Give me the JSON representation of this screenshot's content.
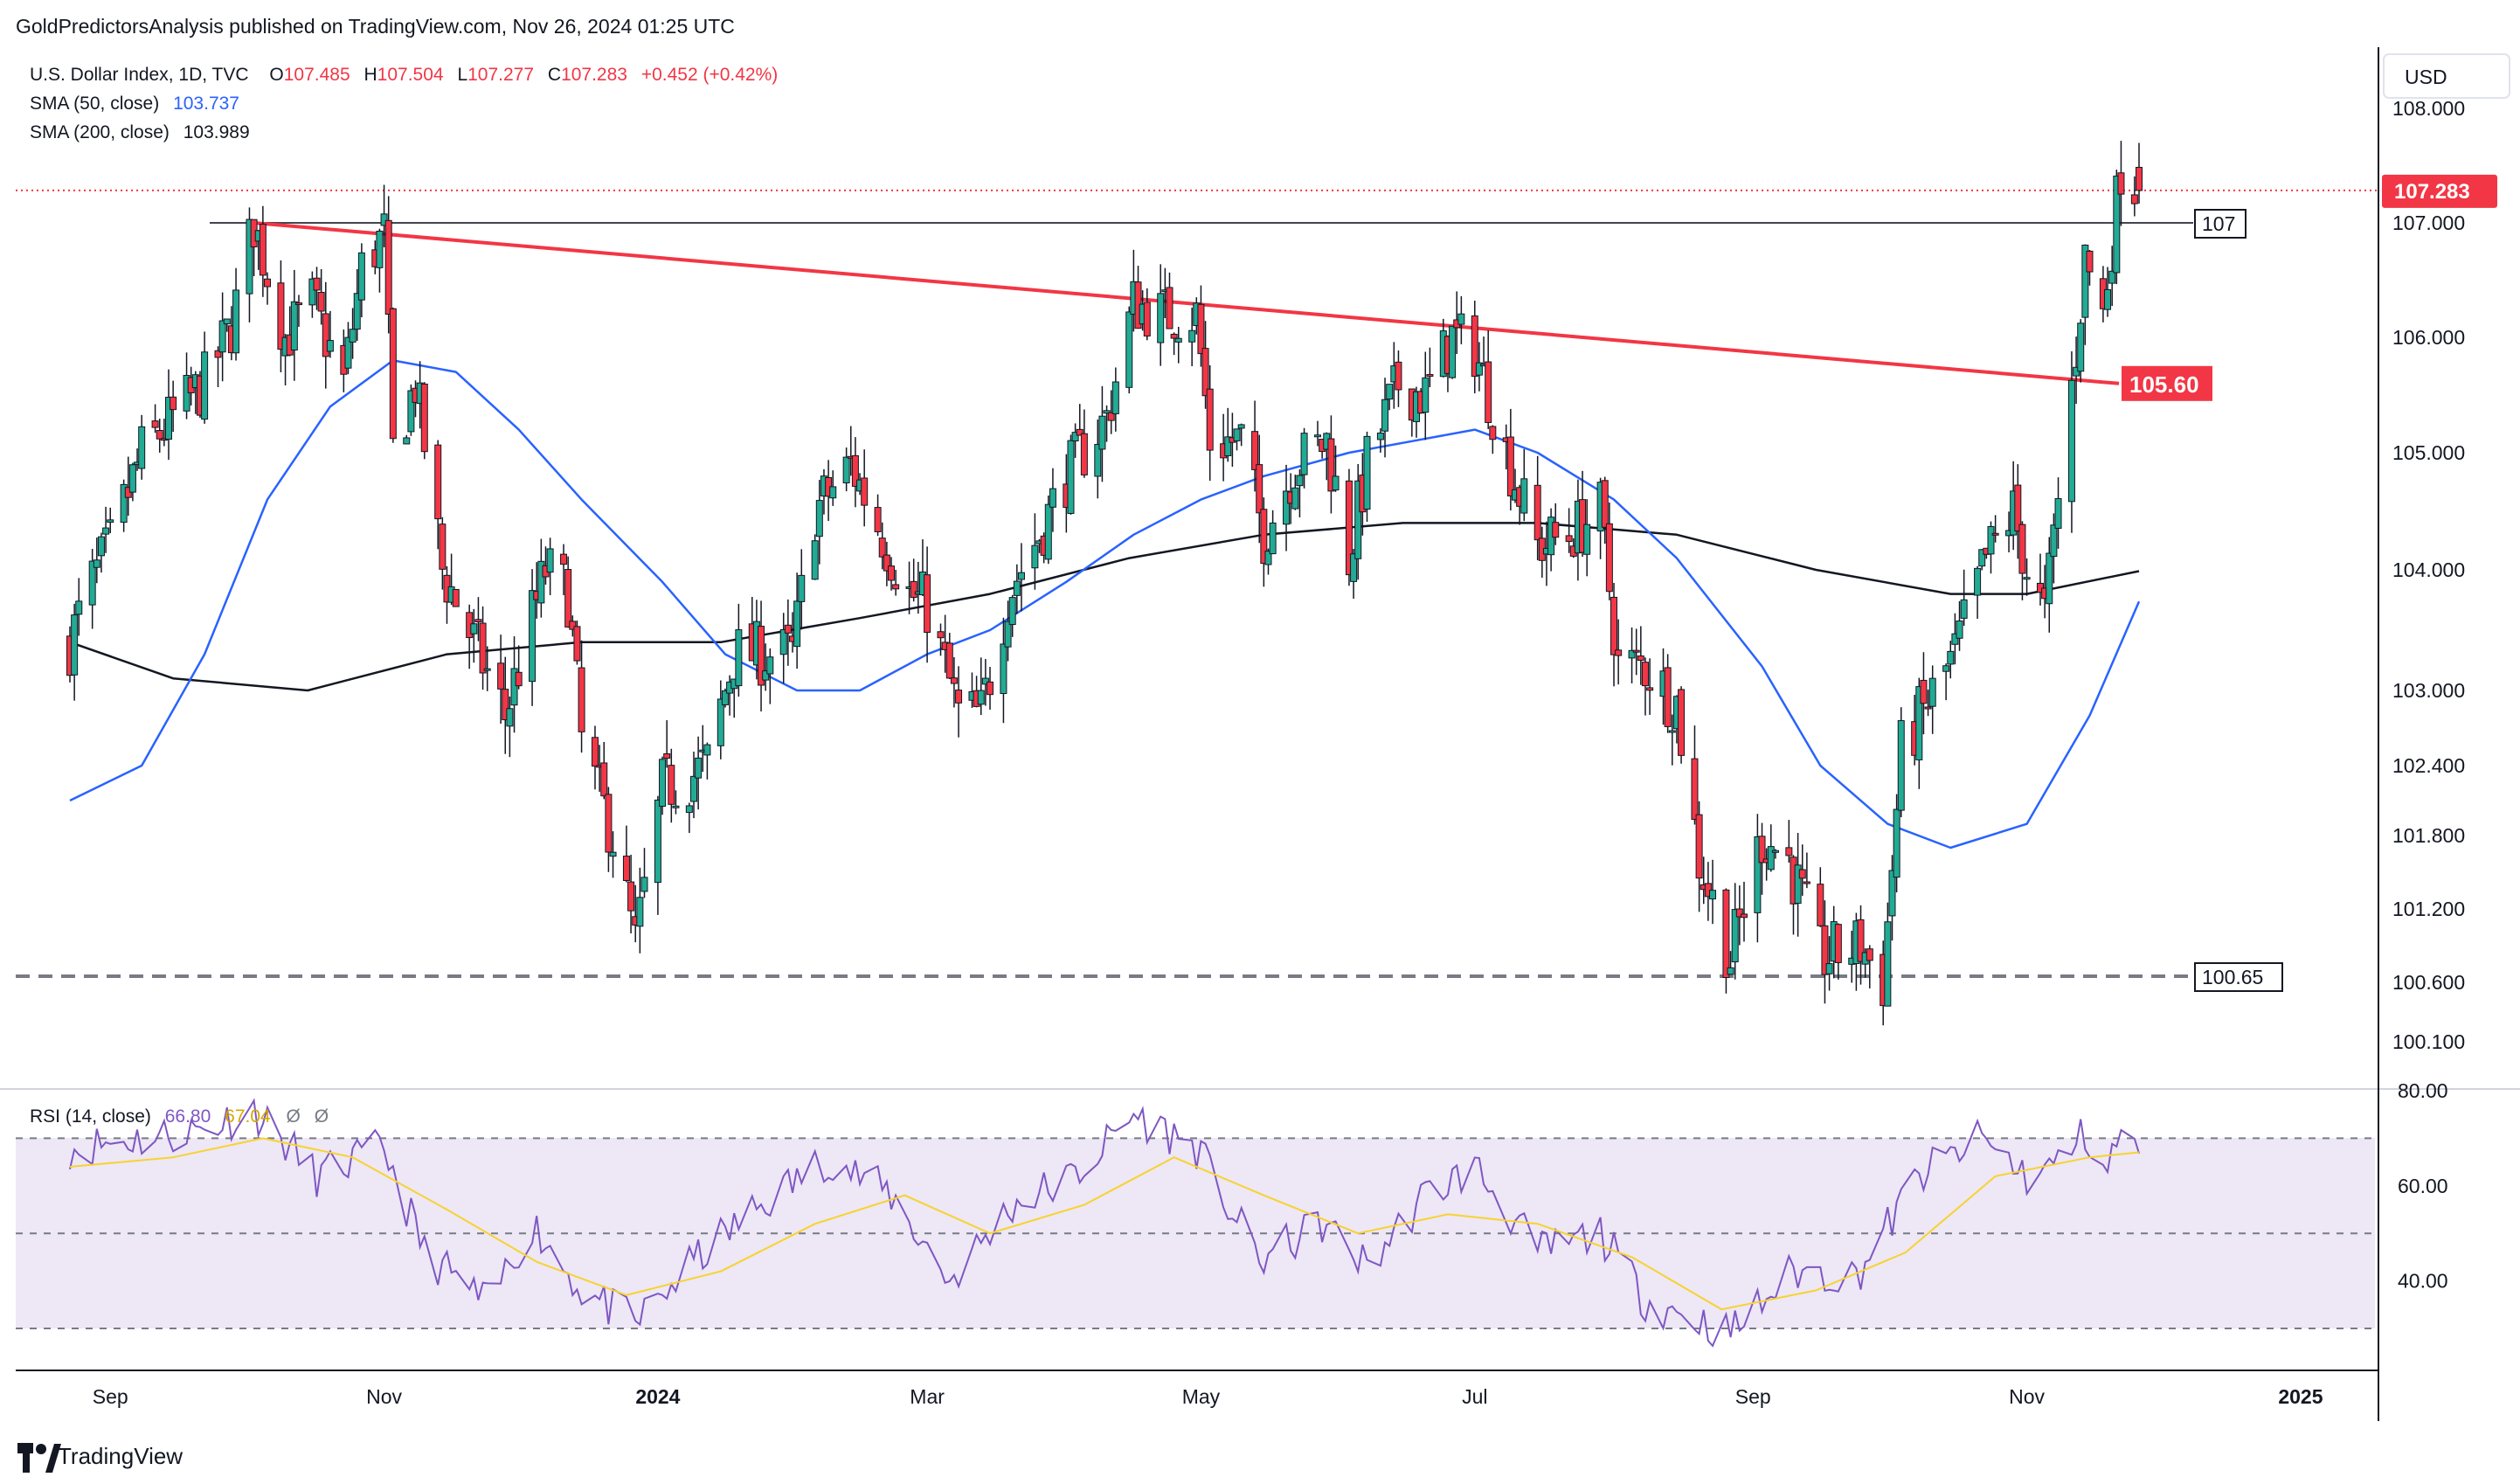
{
  "header": {
    "published": "GoldPredictorsAnalysis published on TradingView.com, Nov 26, 2024 01:25 UTC"
  },
  "legend": {
    "symbol": "U.S. Dollar Index, 1D, TVC",
    "open_label": "O",
    "open": "107.485",
    "high_label": "H",
    "high": "107.504",
    "low_label": "L",
    "low": "107.277",
    "close_label": "C",
    "close": "107.283",
    "change": "+0.452 (+0.42%)",
    "sma50_label": "SMA (50, close)",
    "sma50_value": "103.737",
    "sma200_label": "SMA (200, close)",
    "sma200_value": "103.989",
    "rsi_label": "RSI (14, close)",
    "rsi_value": "66.80",
    "rsi_ma_value": "67.04",
    "rsi_extra1": "Ø",
    "rsi_extra2": "Ø"
  },
  "footer": {
    "brand": "TradingView"
  },
  "colors": {
    "up": "#22ab94",
    "down": "#f23645",
    "sma50": "#2962ff",
    "sma200": "#131722",
    "resistance": "#f23645",
    "rsi_line": "#7e57c2",
    "rsi_ma": "#f7d32e",
    "rsi_band": "#ede7f6",
    "price_tag": "#f23645"
  },
  "chart_data": {
    "type": "candlestick",
    "currency": "USD",
    "price_axis_ticks": [
      "108.000",
      "107.000",
      "106.000",
      "105.000",
      "104.000",
      "103.000",
      "102.400",
      "101.800",
      "101.200",
      "100.600",
      "100.100"
    ],
    "rsi_axis_ticks": [
      "80.00",
      "60.00",
      "40.00"
    ],
    "time_axis_ticks": [
      "Sep",
      "Nov",
      "2024",
      "Mar",
      "May",
      "Jul",
      "Sep",
      "Nov",
      "2025"
    ],
    "last_price_label": "107.283",
    "horizontal_lines": [
      {
        "label": "107",
        "value": 107.0,
        "style": "solid"
      },
      {
        "label": "100.65",
        "value": 100.65,
        "style": "dashed"
      }
    ],
    "trendline": {
      "label": "105.60",
      "start": {
        "date": "2023-10-03",
        "value": 107.0
      },
      "end": {
        "date": "2024-11-26",
        "value": 105.6
      }
    },
    "sma50_end": 103.737,
    "sma200_end": 103.989,
    "rsi_levels": [
      70,
      50,
      30
    ],
    "rsi_end": 66.8,
    "rsi_ma_end": 67.04,
    "price_path": [
      [
        "2023-08-23",
        103.4
      ],
      [
        "2023-08-28",
        103.9
      ],
      [
        "2023-09-01",
        104.2
      ],
      [
        "2023-09-08",
        105.0
      ],
      [
        "2023-09-15",
        105.3
      ],
      [
        "2023-09-22",
        105.6
      ],
      [
        "2023-09-28",
        106.1
      ],
      [
        "2023-10-03",
        107.0
      ],
      [
        "2023-10-10",
        106.0
      ],
      [
        "2023-10-16",
        106.3
      ],
      [
        "2023-10-23",
        105.6
      ],
      [
        "2023-10-27",
        106.6
      ],
      [
        "2023-11-01",
        106.9
      ],
      [
        "2023-11-03",
        105.0
      ],
      [
        "2023-11-08",
        105.6
      ],
      [
        "2023-11-14",
        104.0
      ],
      [
        "2023-11-21",
        103.4
      ],
      [
        "2023-11-28",
        102.8
      ],
      [
        "2023-12-01",
        103.2
      ],
      [
        "2023-12-07",
        104.0
      ],
      [
        "2023-12-12",
        103.8
      ],
      [
        "2023-12-15",
        102.6
      ],
      [
        "2023-12-22",
        101.8
      ],
      [
        "2023-12-27",
        100.9
      ],
      [
        "2024-01-02",
        102.2
      ],
      [
        "2024-01-08",
        102.3
      ],
      [
        "2024-01-12",
        102.4
      ],
      [
        "2024-01-18",
        103.3
      ],
      [
        "2024-01-24",
        103.3
      ],
      [
        "2024-01-31",
        103.3
      ],
      [
        "2024-02-05",
        104.5
      ],
      [
        "2024-02-13",
        104.9
      ],
      [
        "2024-02-20",
        104.3
      ],
      [
        "2024-02-26",
        103.8
      ],
      [
        "2024-03-01",
        103.7
      ],
      [
        "2024-03-08",
        102.8
      ],
      [
        "2024-03-13",
        102.8
      ],
      [
        "2024-03-19",
        103.8
      ],
      [
        "2024-03-26",
        104.3
      ],
      [
        "2024-04-01",
        104.8
      ],
      [
        "2024-04-10",
        105.3
      ],
      [
        "2024-04-16",
        106.3
      ],
      [
        "2024-04-22",
        106.2
      ],
      [
        "2024-04-30",
        106.2
      ],
      [
        "2024-05-03",
        105.1
      ],
      [
        "2024-05-10",
        105.1
      ],
      [
        "2024-05-15",
        104.3
      ],
      [
        "2024-05-22",
        104.9
      ],
      [
        "2024-05-29",
        105.1
      ],
      [
        "2024-06-03",
        104.1
      ],
      [
        "2024-06-07",
        104.9
      ],
      [
        "2024-06-14",
        105.6
      ],
      [
        "2024-06-20",
        105.5
      ],
      [
        "2024-06-26",
        106.0
      ],
      [
        "2024-07-01",
        105.9
      ],
      [
        "2024-07-08",
        105.0
      ],
      [
        "2024-07-15",
        104.2
      ],
      [
        "2024-07-22",
        104.3
      ],
      [
        "2024-07-29",
        104.5
      ],
      [
        "2024-08-02",
        103.2
      ],
      [
        "2024-08-08",
        103.2
      ],
      [
        "2024-08-15",
        102.9
      ],
      [
        "2024-08-20",
        101.6
      ],
      [
        "2024-08-27",
        100.8
      ],
      [
        "2024-09-03",
        101.8
      ],
      [
        "2024-09-09",
        101.6
      ],
      [
        "2024-09-16",
        100.8
      ],
      [
        "2024-09-25",
        100.9
      ],
      [
        "2024-09-30",
        100.6
      ],
      [
        "2024-10-04",
        102.5
      ],
      [
        "2024-10-10",
        102.9
      ],
      [
        "2024-10-16",
        103.3
      ],
      [
        "2024-10-23",
        104.1
      ],
      [
        "2024-10-29",
        104.5
      ],
      [
        "2024-11-01",
        104.0
      ],
      [
        "2024-11-05",
        103.6
      ],
      [
        "2024-11-08",
        104.6
      ],
      [
        "2024-11-12",
        105.9
      ],
      [
        "2024-11-14",
        106.7
      ],
      [
        "2024-11-18",
        106.2
      ],
      [
        "2024-11-22",
        107.5
      ],
      [
        "2024-11-26",
        107.283
      ]
    ],
    "sma50_path": [
      [
        "2023-08-23",
        102.1
      ],
      [
        "2023-09-08",
        102.4
      ],
      [
        "2023-09-22",
        103.3
      ],
      [
        "2023-10-06",
        104.6
      ],
      [
        "2023-10-20",
        105.4
      ],
      [
        "2023-11-03",
        105.8
      ],
      [
        "2023-11-17",
        105.7
      ],
      [
        "2023-12-01",
        105.2
      ],
      [
        "2023-12-15",
        104.6
      ],
      [
        "2024-01-02",
        103.9
      ],
      [
        "2024-01-16",
        103.3
      ],
      [
        "2024-02-01",
        103.0
      ],
      [
        "2024-02-15",
        103.0
      ],
      [
        "2024-03-01",
        103.3
      ],
      [
        "2024-03-15",
        103.5
      ],
      [
        "2024-04-01",
        103.9
      ],
      [
        "2024-04-16",
        104.3
      ],
      [
        "2024-05-01",
        104.6
      ],
      [
        "2024-05-15",
        104.8
      ],
      [
        "2024-06-03",
        105.0
      ],
      [
        "2024-06-17",
        105.1
      ],
      [
        "2024-07-01",
        105.2
      ],
      [
        "2024-07-15",
        105.0
      ],
      [
        "2024-08-01",
        104.6
      ],
      [
        "2024-08-15",
        104.1
      ],
      [
        "2024-09-03",
        103.2
      ],
      [
        "2024-09-16",
        102.4
      ],
      [
        "2024-10-01",
        101.9
      ],
      [
        "2024-10-15",
        101.7
      ],
      [
        "2024-11-01",
        101.9
      ],
      [
        "2024-11-15",
        102.8
      ],
      [
        "2024-11-26",
        103.737
      ]
    ],
    "sma200_path": [
      [
        "2023-08-23",
        103.4
      ],
      [
        "2023-09-15",
        103.1
      ],
      [
        "2023-10-15",
        103.0
      ],
      [
        "2023-11-15",
        103.3
      ],
      [
        "2023-12-15",
        103.4
      ],
      [
        "2024-01-15",
        103.4
      ],
      [
        "2024-02-15",
        103.6
      ],
      [
        "2024-03-15",
        103.8
      ],
      [
        "2024-04-15",
        104.1
      ],
      [
        "2024-05-15",
        104.3
      ],
      [
        "2024-06-15",
        104.4
      ],
      [
        "2024-07-15",
        104.4
      ],
      [
        "2024-08-15",
        104.3
      ],
      [
        "2024-09-15",
        104.0
      ],
      [
        "2024-10-15",
        103.8
      ],
      [
        "2024-11-01",
        103.8
      ],
      [
        "2024-11-26",
        103.989
      ]
    ],
    "rsi_path": [
      [
        "2023-08-23",
        68
      ],
      [
        "2023-09-08",
        70
      ],
      [
        "2023-09-22",
        72
      ],
      [
        "2023-10-03",
        76
      ],
      [
        "2023-10-17",
        62
      ],
      [
        "2023-11-01",
        68
      ],
      [
        "2023-11-10",
        46
      ],
      [
        "2023-11-24",
        35
      ],
      [
        "2023-12-04",
        52
      ],
      [
        "2023-12-15",
        38
      ],
      [
        "2023-12-27",
        31
      ],
      [
        "2024-01-10",
        45
      ],
      [
        "2024-01-24",
        56
      ],
      [
        "2024-02-08",
        66
      ],
      [
        "2024-02-22",
        58
      ],
      [
        "2024-03-06",
        40
      ],
      [
        "2024-03-20",
        56
      ],
      [
        "2024-04-03",
        62
      ],
      [
        "2024-04-16",
        75
      ],
      [
        "2024-04-30",
        68
      ],
      [
        "2024-05-14",
        44
      ],
      [
        "2024-05-28",
        52
      ],
      [
        "2024-06-07",
        43
      ],
      [
        "2024-06-20",
        58
      ],
      [
        "2024-07-01",
        64
      ],
      [
        "2024-07-15",
        46
      ],
      [
        "2024-07-29",
        50
      ],
      [
        "2024-08-08",
        36
      ],
      [
        "2024-08-27",
        29
      ],
      [
        "2024-09-10",
        42
      ],
      [
        "2024-09-24",
        41
      ],
      [
        "2024-10-08",
        62
      ],
      [
        "2024-10-22",
        70
      ],
      [
        "2024-11-01",
        62
      ],
      [
        "2024-11-07",
        64
      ],
      [
        "2024-11-14",
        71
      ],
      [
        "2024-11-19",
        63
      ],
      [
        "2024-11-22",
        72
      ],
      [
        "2024-11-26",
        66.8
      ]
    ],
    "rsi_ma_path": [
      [
        "2023-08-23",
        64
      ],
      [
        "2023-09-15",
        66
      ],
      [
        "2023-10-05",
        70
      ],
      [
        "2023-10-25",
        66
      ],
      [
        "2023-11-15",
        55
      ],
      [
        "2023-12-05",
        44
      ],
      [
        "2023-12-25",
        37
      ],
      [
        "2024-01-15",
        42
      ],
      [
        "2024-02-05",
        52
      ],
      [
        "2024-02-25",
        58
      ],
      [
        "2024-03-15",
        50
      ],
      [
        "2024-04-05",
        56
      ],
      [
        "2024-04-25",
        66
      ],
      [
        "2024-05-15",
        58
      ],
      [
        "2024-06-05",
        50
      ],
      [
        "2024-06-25",
        54
      ],
      [
        "2024-07-15",
        52
      ],
      [
        "2024-08-05",
        45
      ],
      [
        "2024-08-25",
        34
      ],
      [
        "2024-09-15",
        38
      ],
      [
        "2024-10-05",
        46
      ],
      [
        "2024-10-25",
        62
      ],
      [
        "2024-11-15",
        66
      ],
      [
        "2024-11-26",
        67.04
      ]
    ]
  }
}
